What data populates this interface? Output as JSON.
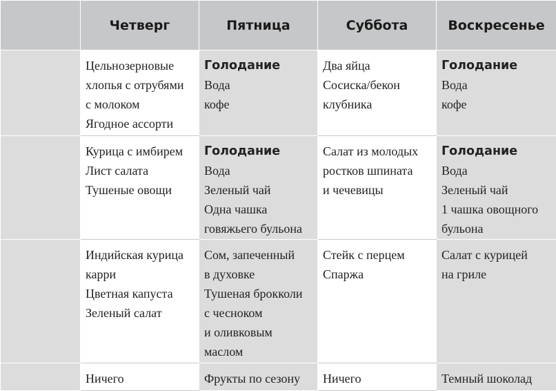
{
  "headers": [
    "",
    "Четверг",
    "Пятница",
    "Суббота",
    "Воскресенье"
  ],
  "rows": [
    [
      [],
      [
        {
          "t": "Цельнозерновые"
        },
        {
          "t": "хлопья с отрубями"
        },
        {
          "t": "с молоком"
        },
        {
          "t": "Ягодное ассорти"
        }
      ],
      [
        {
          "t": "Голодание",
          "bold": true
        },
        {
          "t": "Вода"
        },
        {
          "t": "кофе"
        }
      ],
      [
        {
          "t": "Два яйца"
        },
        {
          "t": "Сосиска/бекон"
        },
        {
          "t": "клубника"
        }
      ],
      [
        {
          "t": "Голодание",
          "bold": true
        },
        {
          "t": "Вода"
        },
        {
          "t": "кофе"
        }
      ]
    ],
    [
      [],
      [
        {
          "t": "Курица с имбирем"
        },
        {
          "t": "Лист салата"
        },
        {
          "t": "Тушеные овощи"
        }
      ],
      [
        {
          "t": "Голодание",
          "bold": true
        },
        {
          "t": "Вода"
        },
        {
          "t": "Зеленый чай"
        },
        {
          "t": "Одна чашка"
        },
        {
          "t": "говяжьего бульона"
        }
      ],
      [
        {
          "t": "Салат из молодых"
        },
        {
          "t": "ростков шпината"
        },
        {
          "t": "и чечевицы"
        }
      ],
      [
        {
          "t": "Голодание",
          "bold": true
        },
        {
          "t": "Вода"
        },
        {
          "t": "Зеленый чай"
        },
        {
          "t": "1 чашка овощного"
        },
        {
          "t": "бульона"
        }
      ]
    ],
    [
      [],
      [
        {
          "t": "Индийская курица"
        },
        {
          "t": "карри"
        },
        {
          "t": "Цветная капуста"
        },
        {
          "t": "Зеленый салат"
        }
      ],
      [
        {
          "t": "Сом, запеченный"
        },
        {
          "t": "в духовке"
        },
        {
          "t": "Тушеная брокколи"
        },
        {
          "t": "с чесноком"
        },
        {
          "t": "и оливковым"
        },
        {
          "t": "маслом"
        }
      ],
      [
        {
          "t": "Стейк с перцем"
        },
        {
          "t": "Спаржа"
        }
      ],
      [
        {
          "t": "Салат с курицей"
        },
        {
          "t": "на гриле"
        }
      ]
    ],
    [
      [],
      [
        {
          "t": "Ничего"
        }
      ],
      [
        {
          "t": "Фрукты по сезону"
        }
      ],
      [
        {
          "t": "Ничего"
        }
      ],
      [
        {
          "t": "Темный шоколад"
        }
      ]
    ]
  ]
}
